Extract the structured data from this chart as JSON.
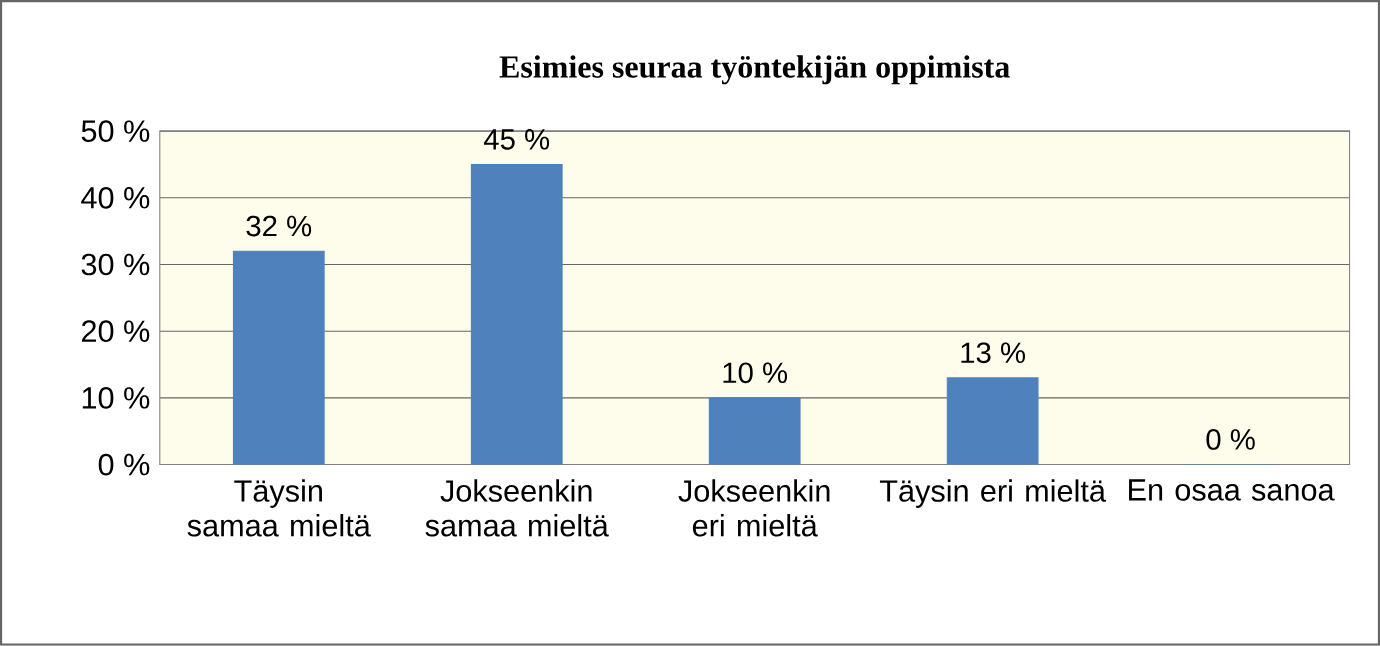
{
  "chart_data": {
    "type": "bar",
    "title": "Esimies seuraa työntekijän oppimista",
    "categories": [
      "Täysin samaa mieltä",
      "Jokseenkin samaa mieltä",
      "Jokseenkin eri mieltä",
      "Täysin eri mieltä",
      "En osaa sanoa"
    ],
    "values": [
      32,
      45,
      10,
      13,
      0
    ],
    "value_labels": [
      "32 %",
      "45 %",
      "10 %",
      "13 %",
      "0 %"
    ],
    "color": "#4f81bd",
    "ylim": [
      0,
      50
    ],
    "yticks": [
      {
        "value": 0,
        "label": "0 %"
      },
      {
        "value": 10,
        "label": "10 %"
      },
      {
        "value": 20,
        "label": "20 %"
      },
      {
        "value": 30,
        "label": "30 %"
      },
      {
        "value": 40,
        "label": "40 %"
      },
      {
        "value": 50,
        "label": "50 %"
      }
    ],
    "grid": "y"
  }
}
